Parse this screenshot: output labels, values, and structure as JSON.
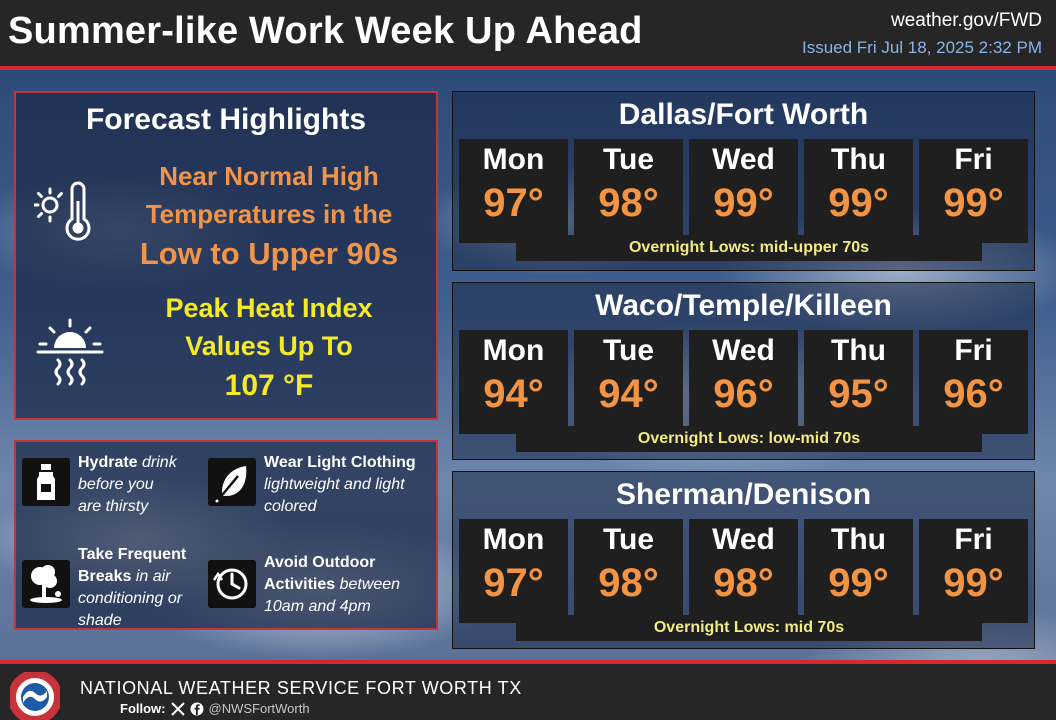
{
  "header": {
    "title": "Summer-like Work Week Up Ahead",
    "site": "weather.gov/FWD",
    "issued": "Issued Fri Jul 18, 2025 2:32 PM"
  },
  "highlights": {
    "heading": "Forecast Highlights",
    "temperature": {
      "line1": "Near Normal High",
      "line2": "Temperatures in the",
      "line3": "Low to Upper 90s",
      "color": "#f0944a",
      "icon": "sun-thermometer-icon"
    },
    "heat_index": {
      "line1": "Peak Heat Index",
      "line2": "Values Up To",
      "line3": "107 °F",
      "color": "#f5ea2a",
      "icon": "heat-wave-icon"
    }
  },
  "tips": [
    {
      "title": "Hydrate",
      "rest_line1": " drink",
      "line2": "before you",
      "line3": "are thirsty",
      "icon": "water-bottle-icon"
    },
    {
      "title": "Wear Light Clothing",
      "line2": "lightweight and light",
      "line3": "colored",
      "icon": "feather-icon"
    },
    {
      "title_line1": "Take Frequent",
      "title_line2": "Breaks",
      "rest_line2": " in air",
      "line3": "conditioning or",
      "line4": "shade",
      "icon": "tree-shade-icon"
    },
    {
      "title_line1": "Avoid Outdoor",
      "title_line2": "Activities",
      "rest_line2": " between",
      "line3": "10am and 4pm",
      "icon": "clock-icon"
    }
  ],
  "cities": [
    {
      "name": "Dallas/Fort Worth",
      "days": [
        {
          "day": "Mon",
          "high": "97°"
        },
        {
          "day": "Tue",
          "high": "98°"
        },
        {
          "day": "Wed",
          "high": "99°"
        },
        {
          "day": "Thu",
          "high": "99°"
        },
        {
          "day": "Fri",
          "high": "99°"
        }
      ],
      "lows": "Overnight Lows: mid-upper 70s"
    },
    {
      "name": "Waco/Temple/Killeen",
      "days": [
        {
          "day": "Mon",
          "high": "94°"
        },
        {
          "day": "Tue",
          "high": "94°"
        },
        {
          "day": "Wed",
          "high": "96°"
        },
        {
          "day": "Thu",
          "high": "95°"
        },
        {
          "day": "Fri",
          "high": "96°"
        }
      ],
      "lows": "Overnight Lows: low-mid 70s"
    },
    {
      "name": "Sherman/Denison",
      "days": [
        {
          "day": "Mon",
          "high": "97°"
        },
        {
          "day": "Tue",
          "high": "98°"
        },
        {
          "day": "Wed",
          "high": "98°"
        },
        {
          "day": "Thu",
          "high": "99°"
        },
        {
          "day": "Fri",
          "high": "99°"
        }
      ],
      "lows": "Overnight Lows: mid 70s"
    }
  ],
  "footer": {
    "office": "NATIONAL WEATHER SERVICE FORT WORTH TX",
    "follow_label": "Follow:",
    "handle": "@NWSFortWorth",
    "logo_text": "NATIONAL WEATHER SERVICE"
  },
  "colors": {
    "accent_red": "#d6282e",
    "high_temp": "#f39444",
    "lows_text": "#f2ea84"
  }
}
